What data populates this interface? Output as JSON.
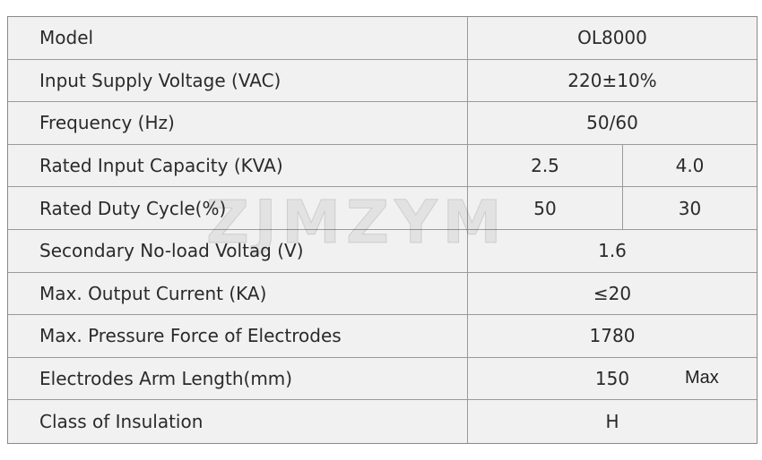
{
  "watermark": "ZJMZYM",
  "table": {
    "rows": [
      {
        "cells": [
          "Model",
          "OL8000"
        ]
      },
      {
        "cells": [
          "Input Supply Voltage (VAC)",
          "220±10%"
        ]
      },
      {
        "cells": [
          "Frequency (Hz)",
          "50/60"
        ]
      },
      {
        "cells": [
          "Rated Input Capacity (KVA)",
          "2.5",
          "4.0"
        ]
      },
      {
        "cells": [
          "Rated Duty Cycle(%)",
          "50",
          "30"
        ]
      },
      {
        "cells": [
          "Secondary No-load Voltag (V)",
          "1.6"
        ]
      },
      {
        "cells": [
          "Max. Output Current (KA)",
          "≤20"
        ]
      },
      {
        "cells": [
          "Max. Pressure Force of Electrodes",
          "1780"
        ]
      },
      {
        "cells": [
          "Electrodes Arm Length(mm)",
          "150"
        ],
        "note": "Max"
      },
      {
        "cells": [
          "Class of Insulation",
          "H"
        ]
      }
    ]
  }
}
